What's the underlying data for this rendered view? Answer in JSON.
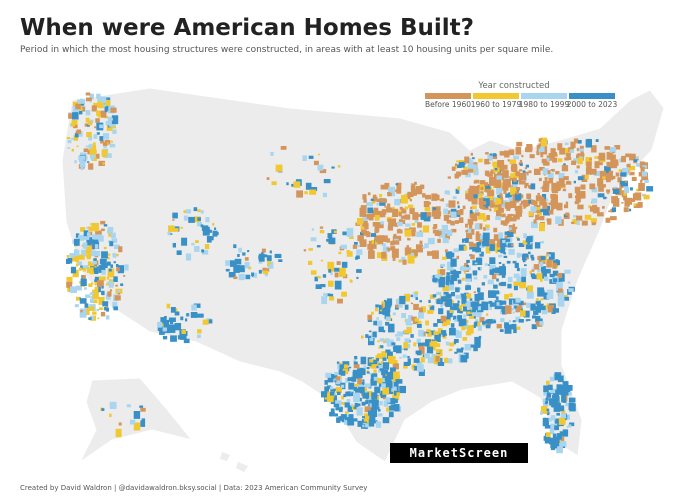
{
  "header": {
    "title": "When were American Homes Built?",
    "subtitle": "Period in which the most housing structures were constructed, in areas with at least 10 housing units per square mile."
  },
  "legend": {
    "title": "Year constructed",
    "items": [
      {
        "label": "Before 1960",
        "color": "#d4955a"
      },
      {
        "label": "1960 to 1979",
        "color": "#f1c832"
      },
      {
        "label": "1980 to 1999",
        "color": "#a9d5ef"
      },
      {
        "label": "2000 to 2023",
        "color": "#3990c6"
      }
    ]
  },
  "footer": "Created by David Waldron | @davidawaldron.bksy.social | Data: 2023 American Community Survey",
  "watermark": "MarketScreen"
}
